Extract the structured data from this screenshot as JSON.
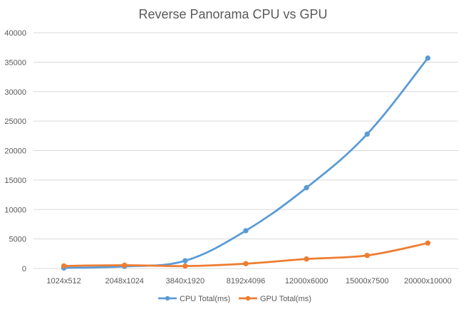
{
  "chart_data": {
    "type": "line",
    "title": "Reverse Panorama CPU vs GPU",
    "xlabel": "",
    "ylabel": "",
    "categories": [
      "1024x512",
      "2048x1024",
      "3840x1920",
      "8192x4096",
      "12000x6000",
      "15000x7500",
      "20000x10000"
    ],
    "series": [
      {
        "name": "CPU Total(ms)",
        "color": "#5B9BD5",
        "values": [
          80,
          350,
          1300,
          6400,
          13700,
          22800,
          35700
        ]
      },
      {
        "name": "GPU Total(ms)",
        "color": "#ED7D31",
        "values": [
          420,
          550,
          400,
          800,
          1600,
          2200,
          4300
        ]
      }
    ],
    "ylim": [
      0,
      40000
    ],
    "yticks": [
      0,
      5000,
      10000,
      15000,
      20000,
      25000,
      30000,
      35000,
      40000
    ],
    "grid": true,
    "legend_position": "bottom",
    "gridline_color": "#D9D9D9",
    "axis_color": "#D9D9D9"
  }
}
